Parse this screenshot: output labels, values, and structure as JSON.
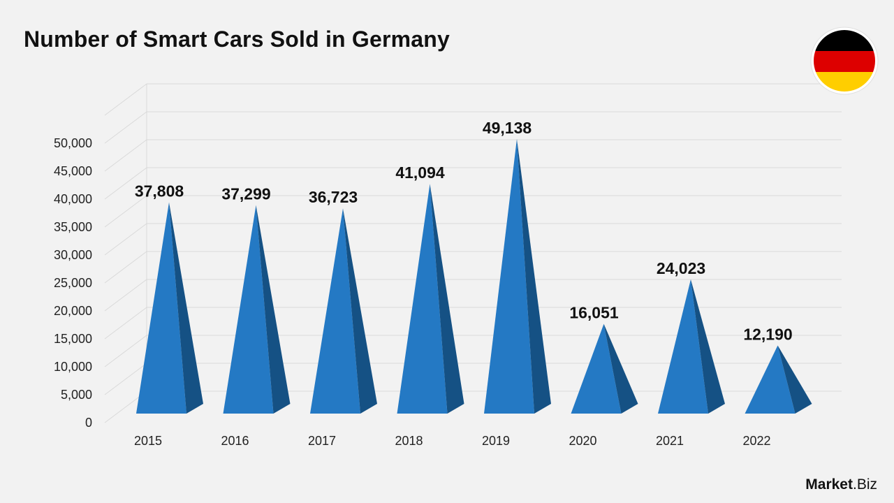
{
  "header": {
    "title": "Number of Smart Cars Sold in Germany"
  },
  "brand": {
    "name_bold": "Market",
    "name_rest": ".Biz"
  },
  "flag": {
    "icon": "germany-flag-icon",
    "colors": [
      "#000000",
      "#dd0000",
      "#ffce00"
    ]
  },
  "colors": {
    "front": "#2479c4",
    "side": "#155184",
    "grid": "#d9d9d9"
  },
  "chart_data": {
    "type": "bar",
    "shape": "pyramid",
    "title": "Number of Smart Cars Sold in Germany",
    "categories": [
      "2015",
      "2016",
      "2017",
      "2018",
      "2019",
      "2020",
      "2021",
      "2022"
    ],
    "values": [
      37808,
      37299,
      36723,
      41094,
      49138,
      16051,
      24023,
      12190
    ],
    "value_labels": [
      "37,808",
      "37,299",
      "36,723",
      "41,094",
      "49,138",
      "16,051",
      "24,023",
      "12,190"
    ],
    "yticks": [
      "0",
      "5,000",
      "10,000",
      "15,000",
      "20,000",
      "25,000",
      "30,000",
      "35,000",
      "40,000",
      "45,000",
      "50,000"
    ],
    "ylim": [
      0,
      55000
    ],
    "grid": true,
    "legend": "none"
  }
}
